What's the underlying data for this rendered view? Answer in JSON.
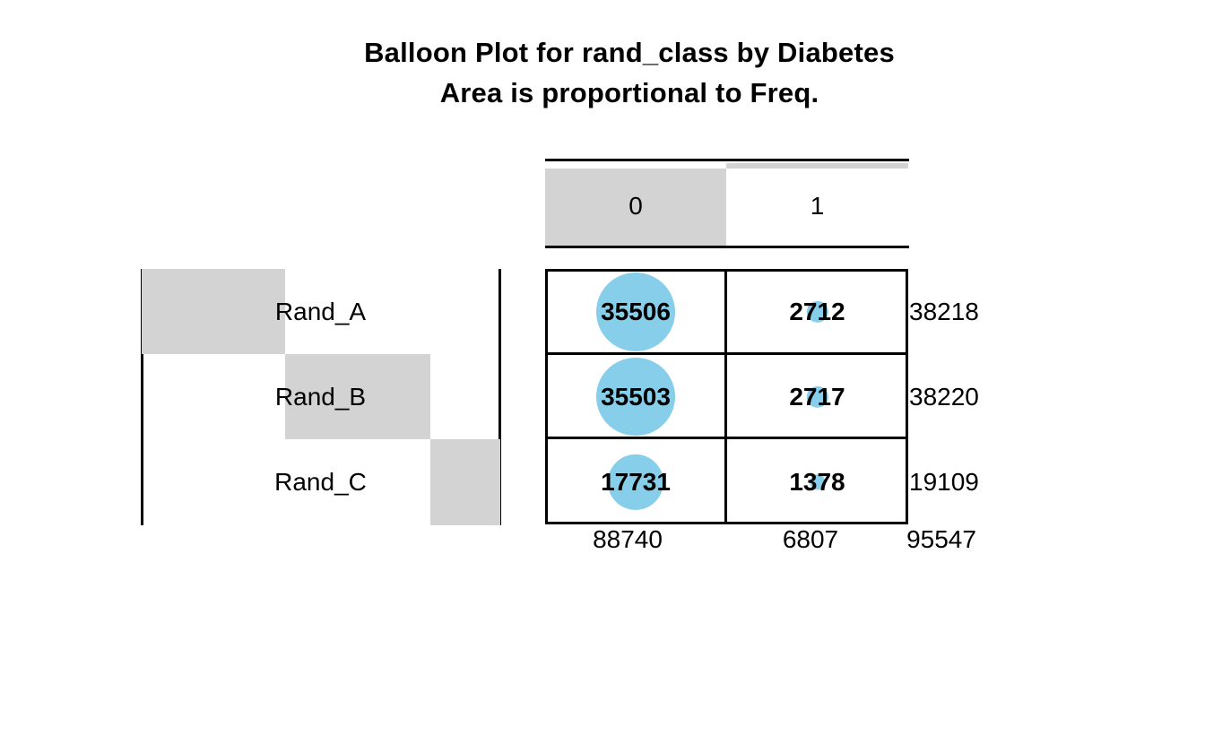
{
  "title": {
    "line1": "Balloon Plot for rand_class by Diabetes",
    "line2": "Area is proportional to Freq."
  },
  "chart_data": {
    "type": "balloon",
    "title": "Balloon Plot for rand_class by Diabetes",
    "subtitle": "Area is proportional to Freq.",
    "columns": [
      "0",
      "1"
    ],
    "rows": [
      "Rand_A",
      "Rand_B",
      "Rand_C"
    ],
    "values": [
      [
        35506,
        2712
      ],
      [
        35503,
        2717
      ],
      [
        17731,
        1378
      ]
    ],
    "row_totals": [
      38218,
      38220,
      19109
    ],
    "col_totals": [
      88740,
      6807
    ],
    "grand_total": 95547,
    "size_encoding": "circle area proportional to Freq",
    "marginal_bar_encoding": "gray bars behind row/column labels proportional to marginal totals",
    "balloon_color": "#87ceeb",
    "marginal_bar_color": "#d3d3d3",
    "line_color": "#000000",
    "background_color": "#ffffff"
  }
}
